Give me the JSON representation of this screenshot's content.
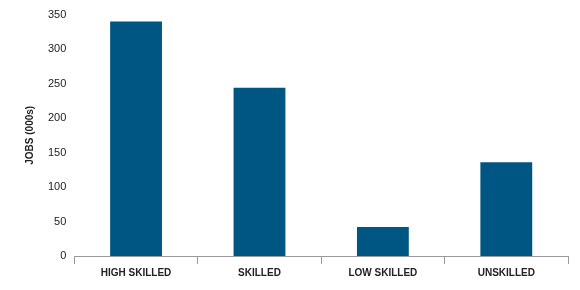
{
  "chart_data": {
    "type": "bar",
    "categories": [
      "HIGH SKILLED",
      "SKILLED",
      "LOW SKILLED",
      "UNSKILLED"
    ],
    "values": [
      340,
      244,
      42,
      136
    ],
    "color": "#005683",
    "y_label": "JOBS (000s)",
    "ylim": [
      0,
      350
    ],
    "yticks": [
      0,
      50,
      100,
      150,
      200,
      250,
      300,
      350
    ],
    "grid": false
  }
}
